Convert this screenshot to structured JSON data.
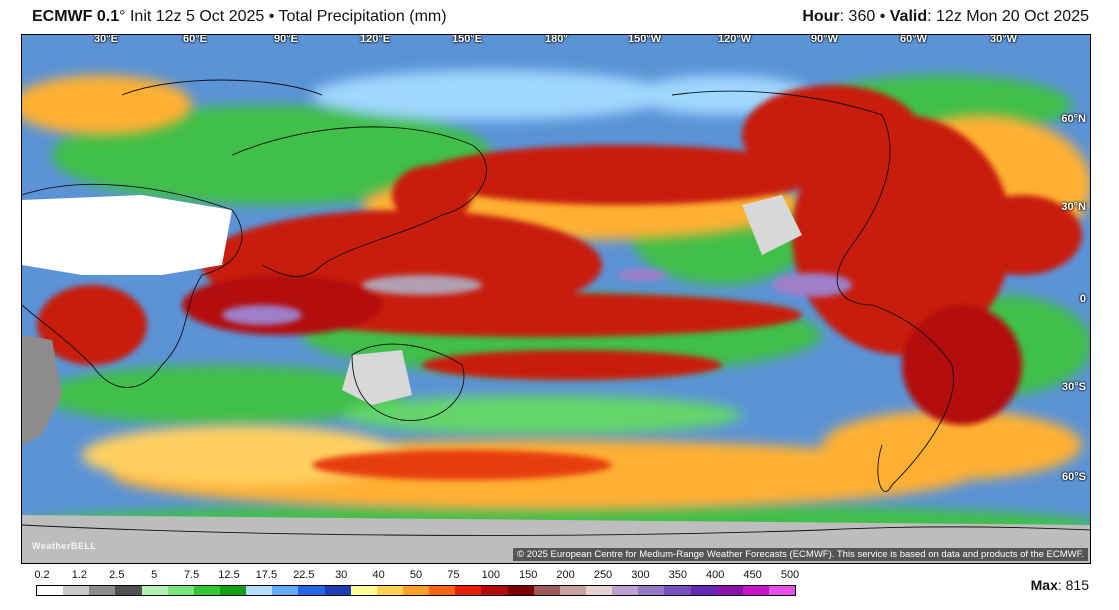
{
  "header": {
    "model": "ECMWF 0.1",
    "degree": "°",
    "init": "Init 12z 5 Oct 2025",
    "bullet": "•",
    "product": "Total Precipitation (mm)",
    "hour_label": "Hour",
    "hour_value": ": 360",
    "valid_label": "Valid",
    "valid_value": ": 12z Mon 20 Oct 2025"
  },
  "map": {
    "projection": "global cylindrical, Pacific-centered",
    "longitude_labels": [
      "30°E",
      "60°E",
      "90°E",
      "120°E",
      "150°E",
      "180°",
      "150°W",
      "120°W",
      "90°W",
      "60°W",
      "30°W"
    ],
    "latitude_labels": [
      "60°N",
      "30°N",
      "0",
      "30°S",
      "60°S"
    ],
    "watermark": "WeatherBELL",
    "copyright": "© 2025 European Centre for Medium-Range Weather Forecasts (ECMWF). This service is based on data and products of the ECMWF."
  },
  "legend": {
    "labels": [
      "0.2",
      "1.2",
      "2.5",
      "5",
      "7.5",
      "12.5",
      "17.5",
      "22.5",
      "30",
      "40",
      "50",
      "75",
      "100",
      "150",
      "200",
      "250",
      "300",
      "350",
      "400",
      "450",
      "500"
    ],
    "colors": [
      "#ffffff",
      "#c8c8c8",
      "#8c8c8c",
      "#505050",
      "#b4f0b4",
      "#78e678",
      "#32c832",
      "#14a014",
      "#b4dcff",
      "#64aaff",
      "#2864e6",
      "#1e3cb4",
      "#ffff96",
      "#ffd250",
      "#ffa028",
      "#ff6414",
      "#e61e0a",
      "#b40a0a",
      "#7a0000",
      "#a05a5a",
      "#c8a0a0",
      "#e6d2d2",
      "#bea0d2",
      "#9678c8",
      "#7850be",
      "#6428b4",
      "#8c14aa",
      "#c814c8",
      "#e650e6"
    ]
  },
  "max": {
    "label": "Max",
    "value": ": 815"
  }
}
